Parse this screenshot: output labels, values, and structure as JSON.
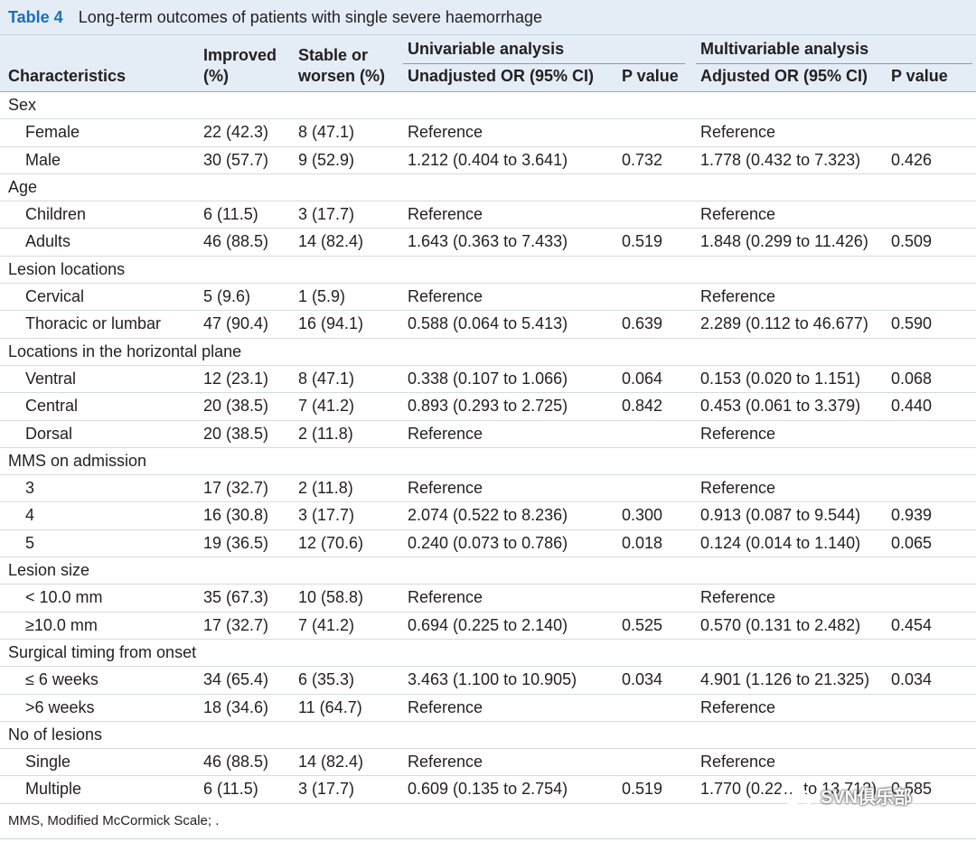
{
  "caption": {
    "label": "Table 4",
    "text": "Long-term outcomes of patients with single severe haemorrhage"
  },
  "header": {
    "characteristics": "Characteristics",
    "improved": [
      "Improved",
      "(%)"
    ],
    "stable": [
      "Stable or",
      "worsen (%)"
    ],
    "univariable": "Univariable analysis",
    "multivariable": "Multivariable analysis",
    "unadjusted": "Unadjusted OR (95% CI)",
    "p_value_1": "P value",
    "adjusted": "Adjusted OR (95% CI)",
    "p_value_2": "P value"
  },
  "rows": [
    {
      "type": "section",
      "label": "Sex"
    },
    {
      "type": "data",
      "label": "Female",
      "improved": "22 (42.3)",
      "stable": "8 (47.1)",
      "unadj": "Reference",
      "p1": "",
      "adj": "Reference",
      "p2": ""
    },
    {
      "type": "data",
      "label": "Male",
      "improved": "30 (57.7)",
      "stable": "9 (52.9)",
      "unadj": "1.212 (0.404 to 3.641)",
      "p1": "0.732",
      "adj": "1.778 (0.432 to 7.323)",
      "p2": "0.426"
    },
    {
      "type": "section",
      "label": "Age"
    },
    {
      "type": "data",
      "label": "Children",
      "improved": "6 (11.5)",
      "stable": "3 (17.7)",
      "unadj": "Reference",
      "p1": "",
      "adj": "Reference",
      "p2": ""
    },
    {
      "type": "data",
      "label": "Adults",
      "improved": "46 (88.5)",
      "stable": "14 (82.4)",
      "unadj": "1.643 (0.363 to 7.433)",
      "p1": "0.519",
      "adj": "1.848 (0.299 to 11.426)",
      "p2": "0.509"
    },
    {
      "type": "section",
      "label": "Lesion locations"
    },
    {
      "type": "data",
      "label": "Cervical",
      "improved": "5 (9.6)",
      "stable": "1 (5.9)",
      "unadj": "Reference",
      "p1": "",
      "adj": "Reference",
      "p2": ""
    },
    {
      "type": "data",
      "label": "Thoracic or lumbar",
      "improved": "47 (90.4)",
      "stable": "16 (94.1)",
      "unadj": "0.588 (0.064 to 5.413)",
      "p1": "0.639",
      "adj": "2.289 (0.112 to 46.677)",
      "p2": "0.590"
    },
    {
      "type": "section",
      "label": "Locations in the horizontal plane"
    },
    {
      "type": "data",
      "label": "Ventral",
      "improved": "12 (23.1)",
      "stable": "8 (47.1)",
      "unadj": "0.338 (0.107 to 1.066)",
      "p1": "0.064",
      "adj": "0.153 (0.020 to 1.151)",
      "p2": "0.068"
    },
    {
      "type": "data",
      "label": "Central",
      "improved": "20 (38.5)",
      "stable": "7 (41.2)",
      "unadj": "0.893 (0.293 to 2.725)",
      "p1": "0.842",
      "adj": "0.453 (0.061 to 3.379)",
      "p2": "0.440"
    },
    {
      "type": "data",
      "label": "Dorsal",
      "improved": "20 (38.5)",
      "stable": "2 (11.8)",
      "unadj": "Reference",
      "p1": "",
      "adj": "Reference",
      "p2": ""
    },
    {
      "type": "section",
      "label": "MMS on admission"
    },
    {
      "type": "data",
      "label": "3",
      "improved": "17 (32.7)",
      "stable": "2 (11.8)",
      "unadj": "Reference",
      "p1": "",
      "adj": "Reference",
      "p2": ""
    },
    {
      "type": "data",
      "label": "4",
      "improved": "16 (30.8)",
      "stable": "3 (17.7)",
      "unadj": "2.074 (0.522 to 8.236)",
      "p1": "0.300",
      "adj": "0.913 (0.087 to 9.544)",
      "p2": "0.939"
    },
    {
      "type": "data",
      "label": "5",
      "improved": "19 (36.5)",
      "stable": "12 (70.6)",
      "unadj": "0.240 (0.073 to 0.786)",
      "p1": "0.018",
      "adj": "0.124 (0.014 to 1.140)",
      "p2": "0.065"
    },
    {
      "type": "section",
      "label": "Lesion size"
    },
    {
      "type": "data",
      "label": "< 10.0 mm",
      "improved": "35 (67.3)",
      "stable": "10 (58.8)",
      "unadj": "Reference",
      "p1": "",
      "adj": "Reference",
      "p2": ""
    },
    {
      "type": "data",
      "label": "≥10.0 mm",
      "improved": "17 (32.7)",
      "stable": "7 (41.2)",
      "unadj": "0.694 (0.225 to 2.140)",
      "p1": "0.525",
      "adj": "0.570 (0.131 to 2.482)",
      "p2": "0.454"
    },
    {
      "type": "section",
      "label": "Surgical timing from onset"
    },
    {
      "type": "data",
      "label": "≤ 6 weeks",
      "improved": "34 (65.4)",
      "stable": "6 (35.3)",
      "unadj": "3.463 (1.100 to 10.905)",
      "p1": "0.034",
      "adj": "4.901 (1.126 to 21.325)",
      "p2": "0.034"
    },
    {
      "type": "data",
      "label": ">6 weeks",
      "improved": "18 (34.6)",
      "stable": "11 (64.7)",
      "unadj": "Reference",
      "p1": "",
      "adj": "Reference",
      "p2": ""
    },
    {
      "type": "section",
      "label": "No of lesions"
    },
    {
      "type": "data",
      "label": "Single",
      "improved": "46 (88.5)",
      "stable": "14 (82.4)",
      "unadj": "Reference",
      "p1": "",
      "adj": "Reference",
      "p2": ""
    },
    {
      "type": "data",
      "label": "Multiple",
      "improved": "6 (11.5)",
      "stable": "3 (17.7)",
      "unadj": "0.609 (0.135 to 2.754)",
      "p1": "0.519",
      "adj": "1.770 (0.22… to 13.712)",
      "p2": "0.585"
    }
  ],
  "footnote": "MMS, Modified McCormick Scale; .",
  "watermark": {
    "text": "SVN俱乐部",
    "icon": "wechat-icon"
  }
}
